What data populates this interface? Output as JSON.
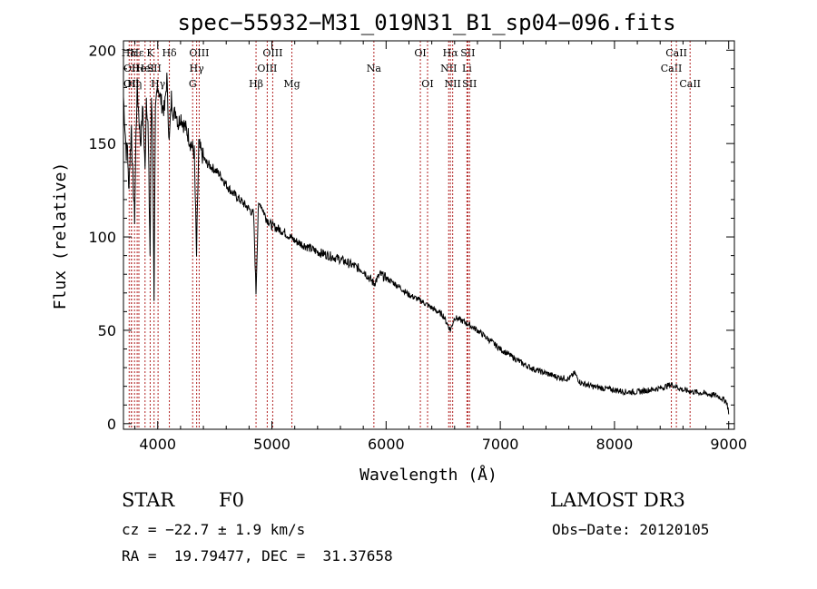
{
  "chart_data": {
    "type": "line",
    "title": "spec−55932−M31_019N31_B1_sp04−096.fits",
    "xlabel": "Wavelength (Å)",
    "ylabel": "Flux (relative)",
    "xlim": [
      3700,
      9050
    ],
    "ylim": [
      -3,
      205
    ],
    "x_ticks": [
      4000,
      5000,
      6000,
      7000,
      8000,
      9000
    ],
    "y_ticks": [
      0,
      50,
      100,
      150,
      200
    ],
    "series": [
      {
        "name": "spectrum",
        "x": [
          3700,
          3712,
          3725,
          3735,
          3745,
          3760,
          3770,
          3780,
          3798,
          3810,
          3820,
          3835,
          3850,
          3870,
          3889,
          3900,
          3915,
          3933,
          3945,
          3955,
          3968,
          3980,
          3990,
          4000,
          4020,
          4040,
          4060,
          4080,
          4101,
          4120,
          4140,
          4160,
          4180,
          4200,
          4230,
          4260,
          4290,
          4320,
          4340,
          4360,
          4380,
          4420,
          4460,
          4500,
          4550,
          4600,
          4650,
          4700,
          4750,
          4800,
          4840,
          4861,
          4880,
          4900,
          4950,
          5000,
          5100,
          5200,
          5300,
          5400,
          5500,
          5600,
          5700,
          5800,
          5893,
          5950,
          6000,
          6100,
          6200,
          6300,
          6400,
          6500,
          6563,
          6600,
          6700,
          6800,
          6900,
          7000,
          7100,
          7200,
          7300,
          7400,
          7500,
          7600,
          7650,
          7700,
          7800,
          7900,
          8000,
          8100,
          8200,
          8300,
          8400,
          8500,
          8600,
          8700,
          8800,
          8900,
          8980,
          8995,
          9000
        ],
        "values": [
          175,
          160,
          145,
          150,
          125,
          145,
          160,
          135,
          110,
          155,
          180,
          165,
          150,
          170,
          135,
          175,
          160,
          90,
          175,
          160,
          68,
          165,
          175,
          182,
          175,
          170,
          168,
          185,
          150,
          175,
          165,
          168,
          160,
          165,
          160,
          156,
          150,
          145,
          90,
          150,
          145,
          140,
          138,
          136,
          133,
          128,
          124,
          121,
          118,
          115,
          112,
          70,
          115,
          118,
          110,
          106,
          103,
          98,
          95,
          92,
          90,
          88,
          85,
          82,
          75,
          80,
          78,
          74,
          69,
          66,
          62,
          58,
          50,
          57,
          54,
          50,
          45,
          40,
          36,
          32,
          29,
          27,
          25,
          24,
          27,
          22,
          20,
          19,
          18,
          17,
          17,
          18,
          19,
          21,
          18,
          17,
          16,
          15,
          12,
          8,
          5
        ]
      }
    ],
    "lines": [
      {
        "wl": 3750,
        "label": "Hα",
        "row": 0
      },
      {
        "wl": 3770,
        "label": "OII",
        "row": 1
      },
      {
        "wl": 3770,
        "label": "OII",
        "row": 2
      },
      {
        "wl": 3797,
        "label": "Hη",
        "row": 2
      },
      {
        "wl": 3820,
        "label": "Hε",
        "row": 0
      },
      {
        "wl": 3835,
        "label": "He",
        "row": 1
      },
      {
        "wl": 3889,
        "label": "HeI",
        "row": 1
      },
      {
        "wl": 3934,
        "label": "K",
        "row": 0
      },
      {
        "wl": 3968,
        "label": "SII",
        "row": 1
      },
      {
        "wl": 4003,
        "label": "Hγ",
        "row": 2
      },
      {
        "wl": 4102,
        "label": "Hδ",
        "row": 0
      },
      {
        "wl": 4306,
        "label": "G",
        "row": 2
      },
      {
        "wl": 4341,
        "label": "Hγ",
        "row": 1
      },
      {
        "wl": 4363,
        "label": "OIII",
        "row": 0
      },
      {
        "wl": 4861,
        "label": "Hβ",
        "row": 2
      },
      {
        "wl": 4959,
        "label": "OIII",
        "row": 1
      },
      {
        "wl": 5007,
        "label": "OIII",
        "row": 0
      },
      {
        "wl": 5175,
        "label": "Mg",
        "row": 2
      },
      {
        "wl": 5893,
        "label": "Na",
        "row": 1
      },
      {
        "wl": 6300,
        "label": "OI",
        "row": 0
      },
      {
        "wl": 6363,
        "label": "OI",
        "row": 2
      },
      {
        "wl": 6548,
        "label": "NII",
        "row": 1
      },
      {
        "wl": 6563,
        "label": "Hα",
        "row": 0
      },
      {
        "wl": 6583,
        "label": "NII",
        "row": 2
      },
      {
        "wl": 6708,
        "label": "Li",
        "row": 1
      },
      {
        "wl": 6716,
        "label": "SII",
        "row": 0
      },
      {
        "wl": 6731,
        "label": "SII",
        "row": 2
      },
      {
        "wl": 8498,
        "label": "CaII",
        "row": 1
      },
      {
        "wl": 8542,
        "label": "CaII",
        "row": 0
      },
      {
        "wl": 8662,
        "label": "CaII",
        "row": 2
      }
    ]
  },
  "info": {
    "class": "STAR",
    "subclass": "F0",
    "survey": "LAMOST DR3",
    "cz": "cz = −22.7 ± 1.9 km/s",
    "obs_date": "Obs−Date: 20120105",
    "radec": "RA =  19.79477, DEC =  31.37658"
  },
  "colors": {
    "line": "#000000",
    "marker": "#b22222",
    "axis": "#000000"
  }
}
